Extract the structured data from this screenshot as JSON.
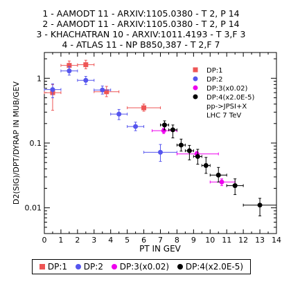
{
  "header": {
    "lines": [
      "1 - AAMODT 11 - ARXIV:1105.0380 - T 2, P 14",
      "2 - AAMODT 11 - ARXIV:1105.0380 - T 2, P 14",
      "3 - KHACHATRAN 10 - ARXIV:1011.4193 - T 3,F 3",
      "4 - ATLAS 11 - NP B850,387 - T 2,F 7"
    ]
  },
  "colors": {
    "red": "#ee5555",
    "blue": "#5555ee",
    "magenta": "#ee00ee",
    "black": "#000000"
  },
  "chart_data": {
    "type": "scatter",
    "xlabel": "PT IN GEV",
    "ylabel": "D2(SIG)/DPT/DYRAP IN MUB/GEV",
    "xlim": [
      0,
      14
    ],
    "ylim": [
      0.004,
      2.5
    ],
    "yscale": "log",
    "x_ticks": [
      "0",
      "1",
      "2",
      "3",
      "4",
      "5",
      "6",
      "7",
      "8",
      "9",
      "10",
      "11",
      "12",
      "13",
      "14"
    ],
    "y_ticks": [
      {
        "value": 0.01,
        "label": "0.01"
      },
      {
        "value": 0.1,
        "label": "0.1"
      },
      {
        "value": 1,
        "label": "1"
      }
    ],
    "inner_legend": [
      "DP:1",
      "DP:2",
      "DP:3(x0.02)",
      "DP:4(x2.0E-5)"
    ],
    "inner_text": [
      "pp->JPSI+X",
      "LHC 7 TeV"
    ],
    "bottom_legend": [
      "DP:1",
      "DP:2",
      "DP:3(x0.02)",
      "DP:4(x2.0E-5)"
    ],
    "series": [
      {
        "name": "DP:1",
        "marker": "square",
        "color": "#ee5555",
        "points": [
          {
            "x": 0.5,
            "y": 0.6,
            "xl": 0.0,
            "xh": 1.0,
            "yl": 0.32,
            "yh": 0.8
          },
          {
            "x": 1.5,
            "y": 1.58,
            "xl": 1.0,
            "xh": 2.0,
            "yl": 1.3,
            "yh": 1.85
          },
          {
            "x": 2.5,
            "y": 1.62,
            "xl": 2.0,
            "xh": 3.0,
            "yl": 1.4,
            "yh": 1.9
          },
          {
            "x": 3.75,
            "y": 0.62,
            "xl": 3.0,
            "xh": 4.5,
            "yl": 0.52,
            "yh": 0.75
          },
          {
            "x": 6.0,
            "y": 0.35,
            "xl": 5.0,
            "xh": 7.0,
            "yl": 0.31,
            "yh": 0.4
          }
        ]
      },
      {
        "name": "DP:2",
        "marker": "circle",
        "color": "#5555ee",
        "points": [
          {
            "x": 0.5,
            "y": 0.67,
            "xl": 0.0,
            "xh": 1.0,
            "yl": 0.5,
            "yh": 0.82
          },
          {
            "x": 1.5,
            "y": 1.3,
            "xl": 1.0,
            "xh": 2.0,
            "yl": 1.12,
            "yh": 1.52
          },
          {
            "x": 2.5,
            "y": 0.93,
            "xl": 2.0,
            "xh": 3.0,
            "yl": 0.8,
            "yh": 1.07
          },
          {
            "x": 3.5,
            "y": 0.66,
            "xl": 3.0,
            "xh": 4.0,
            "yl": 0.57,
            "yh": 0.76
          },
          {
            "x": 4.5,
            "y": 0.28,
            "xl": 4.0,
            "xh": 5.0,
            "yl": 0.23,
            "yh": 0.33
          },
          {
            "x": 5.5,
            "y": 0.18,
            "xl": 5.0,
            "xh": 6.0,
            "yl": 0.155,
            "yh": 0.21
          },
          {
            "x": 7.0,
            "y": 0.072,
            "xl": 6.0,
            "xh": 8.0,
            "yl": 0.052,
            "yh": 0.095
          }
        ]
      },
      {
        "name": "DP:3(x0.02)",
        "marker": "circle",
        "color": "#ee00ee",
        "points": [
          {
            "x": 7.2,
            "y": 0.155,
            "xl": 6.5,
            "xh": 8.0,
            "yl": 0.14,
            "yh": 0.17
          },
          {
            "x": 9.2,
            "y": 0.068,
            "xl": 8.0,
            "xh": 10.5,
            "yl": 0.062,
            "yh": 0.074
          },
          {
            "x": 10.7,
            "y": 0.025,
            "xl": 10.0,
            "xh": 11.5,
            "yl": 0.022,
            "yh": 0.028
          }
        ]
      },
      {
        "name": "DP:4(x2.0E-5)",
        "marker": "circle",
        "color": "#000000",
        "points": [
          {
            "x": 7.25,
            "y": 0.19,
            "xl": 7.0,
            "xh": 7.5,
            "yl": 0.16,
            "yh": 0.22
          },
          {
            "x": 7.75,
            "y": 0.16,
            "xl": 7.5,
            "xh": 8.0,
            "yl": 0.12,
            "yh": 0.19
          },
          {
            "x": 8.25,
            "y": 0.093,
            "xl": 8.0,
            "xh": 8.5,
            "yl": 0.075,
            "yh": 0.115
          },
          {
            "x": 8.75,
            "y": 0.076,
            "xl": 8.5,
            "xh": 9.0,
            "yl": 0.055,
            "yh": 0.092
          },
          {
            "x": 9.25,
            "y": 0.062,
            "xl": 9.0,
            "xh": 9.5,
            "yl": 0.047,
            "yh": 0.08
          },
          {
            "x": 9.75,
            "y": 0.045,
            "xl": 9.5,
            "xh": 10.0,
            "yl": 0.034,
            "yh": 0.06
          },
          {
            "x": 10.5,
            "y": 0.032,
            "xl": 10.0,
            "xh": 11.0,
            "yl": 0.025,
            "yh": 0.042
          },
          {
            "x": 11.5,
            "y": 0.022,
            "xl": 11.0,
            "xh": 12.0,
            "yl": 0.016,
            "yh": 0.028
          },
          {
            "x": 13.0,
            "y": 0.011,
            "xl": 12.0,
            "xh": 14.0,
            "yl": 0.0075,
            "yh": 0.014
          }
        ]
      }
    ]
  }
}
